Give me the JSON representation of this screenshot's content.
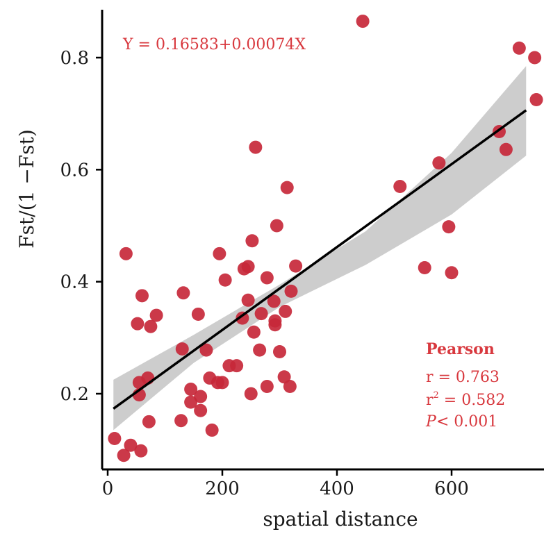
{
  "chart_data": {
    "type": "scatter",
    "xlabel": "spatial distance",
    "ylabel": "Fst/(1 −Fst)",
    "xlim": [
      -5,
      735
    ],
    "ylim": [
      0.06,
      0.9
    ],
    "xticks": [
      0,
      200,
      400,
      600
    ],
    "yticks": [
      0.2,
      0.4,
      0.6,
      0.8
    ],
    "xtick_labels": [
      "0",
      "200",
      "400",
      "600"
    ],
    "ytick_labels": [
      "0.2",
      "0.4",
      "0.6",
      "0.8"
    ],
    "grid": false,
    "equation": "Y = 0.16583+0.00074X",
    "fit": {
      "intercept": 0.16583,
      "slope": 0.00074,
      "x_range": [
        10,
        730
      ]
    },
    "confidence_band": {
      "x": [
        10,
        150,
        300,
        450,
        600,
        730
      ],
      "lower": [
        0.135,
        0.255,
        0.355,
        0.43,
        0.52,
        0.625
      ],
      "upper": [
        0.225,
        0.305,
        0.395,
        0.49,
        0.63,
        0.785
      ]
    },
    "stats": {
      "title": "Pearson",
      "r": "r = 0.763",
      "r2_base": "r",
      "r2_sup": "2",
      "r2_value": " = 0.582",
      "p_italic": "P",
      "p_rest": "< 0.001"
    },
    "colors": {
      "points": "#c7283a",
      "annotation": "#d8383e",
      "fit_line": "#000000",
      "band": "#c8c8c8"
    },
    "points": [
      {
        "x": 12,
        "y": 0.12
      },
      {
        "x": 28,
        "y": 0.09
      },
      {
        "x": 32,
        "y": 0.45
      },
      {
        "x": 40,
        "y": 0.108
      },
      {
        "x": 52,
        "y": 0.325
      },
      {
        "x": 55,
        "y": 0.22
      },
      {
        "x": 55,
        "y": 0.198
      },
      {
        "x": 58,
        "y": 0.098
      },
      {
        "x": 60,
        "y": 0.375
      },
      {
        "x": 70,
        "y": 0.228
      },
      {
        "x": 72,
        "y": 0.15
      },
      {
        "x": 75,
        "y": 0.32
      },
      {
        "x": 85,
        "y": 0.34
      },
      {
        "x": 128,
        "y": 0.152
      },
      {
        "x": 130,
        "y": 0.28
      },
      {
        "x": 132,
        "y": 0.38
      },
      {
        "x": 145,
        "y": 0.185
      },
      {
        "x": 145,
        "y": 0.208
      },
      {
        "x": 158,
        "y": 0.342
      },
      {
        "x": 162,
        "y": 0.17
      },
      {
        "x": 162,
        "y": 0.195
      },
      {
        "x": 172,
        "y": 0.278
      },
      {
        "x": 178,
        "y": 0.228
      },
      {
        "x": 182,
        "y": 0.135
      },
      {
        "x": 192,
        "y": 0.22
      },
      {
        "x": 195,
        "y": 0.45
      },
      {
        "x": 200,
        "y": 0.22
      },
      {
        "x": 205,
        "y": 0.403
      },
      {
        "x": 212,
        "y": 0.25
      },
      {
        "x": 225,
        "y": 0.25
      },
      {
        "x": 235,
        "y": 0.335
      },
      {
        "x": 238,
        "y": 0.423
      },
      {
        "x": 245,
        "y": 0.427
      },
      {
        "x": 245,
        "y": 0.367
      },
      {
        "x": 250,
        "y": 0.2
      },
      {
        "x": 252,
        "y": 0.473
      },
      {
        "x": 255,
        "y": 0.31
      },
      {
        "x": 258,
        "y": 0.64
      },
      {
        "x": 265,
        "y": 0.278
      },
      {
        "x": 268,
        "y": 0.343
      },
      {
        "x": 278,
        "y": 0.213
      },
      {
        "x": 278,
        "y": 0.407
      },
      {
        "x": 290,
        "y": 0.365
      },
      {
        "x": 292,
        "y": 0.33
      },
      {
        "x": 292,
        "y": 0.323
      },
      {
        "x": 295,
        "y": 0.5
      },
      {
        "x": 300,
        "y": 0.275
      },
      {
        "x": 308,
        "y": 0.23
      },
      {
        "x": 310,
        "y": 0.347
      },
      {
        "x": 313,
        "y": 0.568
      },
      {
        "x": 318,
        "y": 0.213
      },
      {
        "x": 320,
        "y": 0.383
      },
      {
        "x": 328,
        "y": 0.428
      },
      {
        "x": 445,
        "y": 0.865
      },
      {
        "x": 510,
        "y": 0.57
      },
      {
        "x": 553,
        "y": 0.425
      },
      {
        "x": 578,
        "y": 0.612
      },
      {
        "x": 595,
        "y": 0.498
      },
      {
        "x": 600,
        "y": 0.416
      },
      {
        "x": 683,
        "y": 0.668
      },
      {
        "x": 695,
        "y": 0.636
      },
      {
        "x": 718,
        "y": 0.817
      },
      {
        "x": 745,
        "y": 0.8
      },
      {
        "x": 752,
        "y": 0.725
      }
    ]
  }
}
